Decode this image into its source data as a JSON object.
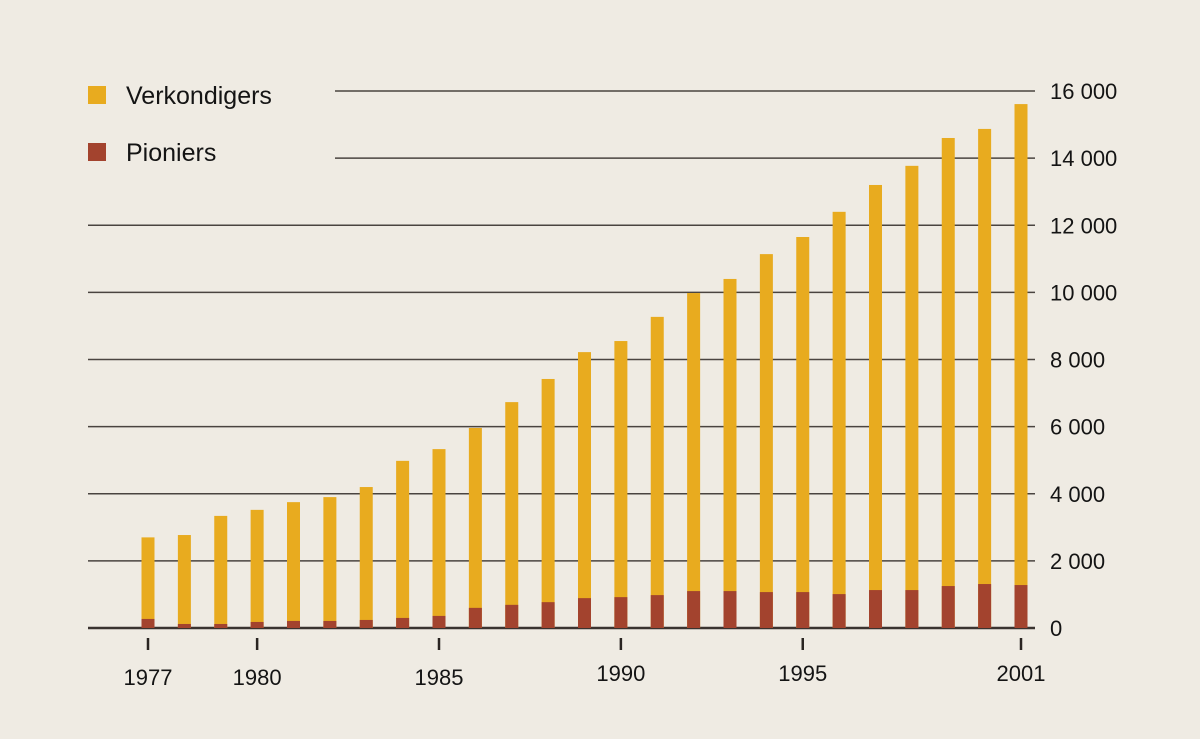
{
  "chart_data": {
    "type": "bar",
    "stacking": "overlaid",
    "legend_placement": "top-left",
    "grid": true,
    "colors": {
      "Verkondigers": "#e8ab1f",
      "Pioniers": "#a3432e",
      "background": "#efebe3"
    },
    "ylim": [
      0,
      16000
    ],
    "yticks": [
      0,
      2000,
      4000,
      6000,
      8000,
      10000,
      12000,
      14000,
      16000
    ],
    "ytick_labels": [
      "0",
      "2 000",
      "4 000",
      "6 000",
      "8 000",
      "10 000",
      "12 000",
      "14 000",
      "16 000"
    ],
    "y_axis_side": "right",
    "categories": [
      1977,
      1978,
      1979,
      1980,
      1981,
      1982,
      1983,
      1984,
      1985,
      1986,
      1987,
      1988,
      1989,
      1990,
      1991,
      1992,
      1993,
      1994,
      1995,
      1996,
      1997,
      1998,
      1999,
      2000,
      2001
    ],
    "xtick_labels": [
      "1977",
      "1980",
      "1985",
      "1990",
      "1995",
      "2001"
    ],
    "series": [
      {
        "name": "Verkondigers",
        "values": [
          2700,
          2770,
          3340,
          3520,
          3750,
          3900,
          4200,
          4980,
          5330,
          5960,
          6730,
          7420,
          8220,
          8550,
          9270,
          9980,
          10400,
          11140,
          11650,
          12400,
          13200,
          13770,
          14600,
          14870,
          15610
        ]
      },
      {
        "name": "Pioniers",
        "values": [
          270,
          120,
          120,
          180,
          210,
          210,
          240,
          300,
          360,
          600,
          690,
          770,
          890,
          920,
          980,
          1100,
          1100,
          1070,
          1070,
          1010,
          1130,
          1130,
          1250,
          1310,
          1280
        ]
      }
    ]
  }
}
